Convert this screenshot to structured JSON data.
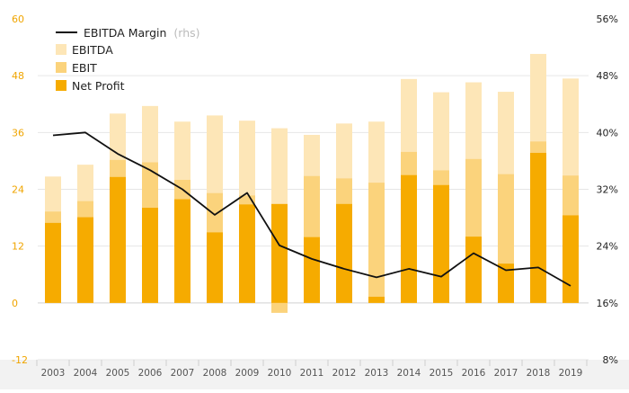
{
  "chart_data": {
    "type": "bar",
    "categories": [
      "2003",
      "2004",
      "2005",
      "2006",
      "2007",
      "2008",
      "2009",
      "2010",
      "2011",
      "2012",
      "2013",
      "2014",
      "2015",
      "2016",
      "2017",
      "2018",
      "2019"
    ],
    "series": [
      {
        "name": "EBITDA",
        "values": [
          26.7,
          29.2,
          40.0,
          41.6,
          38.3,
          39.6,
          38.5,
          36.9,
          35.5,
          37.9,
          38.3,
          47.3,
          44.5,
          46.6,
          44.6,
          52.6,
          47.4
        ]
      },
      {
        "name": "EBIT",
        "values": [
          19.3,
          21.5,
          30.2,
          29.7,
          26.0,
          23.2,
          22.7,
          -2.1,
          26.8,
          26.3,
          25.4,
          31.9,
          28.0,
          30.4,
          27.2,
          34.1,
          26.9
        ]
      },
      {
        "name": "Net Profit",
        "values": [
          16.9,
          18.1,
          26.6,
          20.1,
          21.9,
          14.9,
          20.8,
          20.9,
          13.9,
          20.9,
          1.3,
          27.0,
          24.9,
          14.0,
          8.3,
          31.7,
          18.5
        ]
      },
      {
        "name": "EBITDA Margin",
        "axis": "right",
        "values": [
          39.6,
          40.0,
          37.0,
          34.7,
          32.0,
          28.4,
          31.5,
          24.1,
          22.2,
          20.8,
          19.6,
          20.8,
          19.7,
          23.0,
          20.6,
          21.0,
          18.4
        ]
      }
    ],
    "legend": {
      "margin_label": "EBITDA Margin",
      "margin_suffix": "(rhs)",
      "ebitda_label": "EBITDA",
      "ebit_label": "EBIT",
      "net_label": "Net Profit"
    },
    "y_left": {
      "ticks": [
        "60",
        "48",
        "36",
        "24",
        "12",
        "0",
        "-12"
      ],
      "ylim": [
        -12,
        60
      ]
    },
    "y_right": {
      "ticks": [
        "56%",
        "48%",
        "40%",
        "32%",
        "24%",
        "16%",
        "8%"
      ],
      "ylim": [
        8,
        56
      ]
    },
    "colors": {
      "ebitda": "#fde6b7",
      "ebit": "#fbd37c",
      "net": "#f6ab00",
      "margin": "#111111",
      "left_axis_text": "#f0a500",
      "right_axis_text": "#222222",
      "grid": "#e6e6e6",
      "xaxis_bg": "#f2f2f2"
    },
    "legend_position": "top-left",
    "grid": true
  }
}
